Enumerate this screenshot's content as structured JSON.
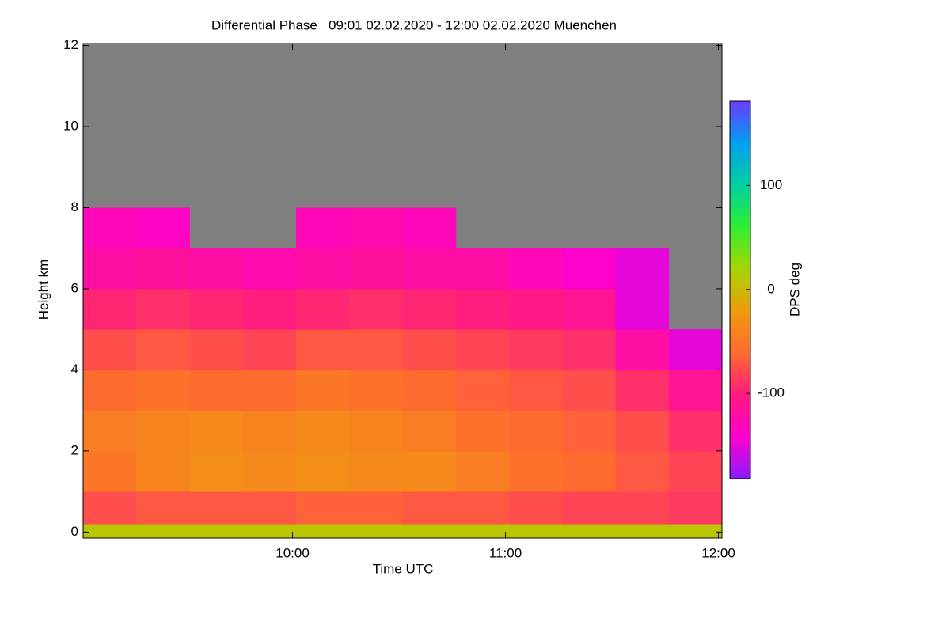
{
  "chart_data": {
    "type": "heatmap",
    "title": "Differential Phase   09:01 02.02.2020 - 12:00 02.02.2020 Muenchen",
    "x_label": "Time UTC",
    "y_label": "Height km",
    "colorbar_label": "DPS deg",
    "xlim": [
      541,
      721
    ],
    "xticks": [
      {
        "value": 600,
        "label": "10:00"
      },
      {
        "value": 660,
        "label": "11:00"
      },
      {
        "value": 720,
        "label": "12:00"
      }
    ],
    "ylim": [
      -0.15,
      12.05
    ],
    "yticks": [
      0,
      2,
      4,
      6,
      8,
      10,
      12
    ],
    "zlim": [
      -182,
      181
    ],
    "zticks": [
      -100,
      0,
      100
    ],
    "colormap": [
      "#8a1cff",
      "#ff00d0",
      "#ff1a80",
      "#ff6a30",
      "#f09a10",
      "#a8d400",
      "#30f030",
      "#00d0a0",
      "#00a0f0",
      "#6a3cff"
    ],
    "missing_color": "#808080",
    "xbins": [
      541,
      556,
      571,
      586,
      601,
      616,
      631,
      646,
      661,
      676,
      691,
      706,
      721
    ],
    "ybins": [
      -0.15,
      0.2,
      1,
      2,
      3,
      4,
      5,
      6,
      7,
      8,
      12.05
    ],
    "z": [
      [
        10,
        10,
        10,
        10,
        10,
        10,
        10,
        10,
        10,
        10,
        10,
        10
      ],
      [
        -75,
        -70,
        -70,
        -70,
        -65,
        -65,
        -70,
        -70,
        -75,
        -80,
        -80,
        -85
      ],
      [
        -50,
        -40,
        -30,
        -35,
        -30,
        -35,
        -35,
        -45,
        -55,
        -60,
        -70,
        -80
      ],
      [
        -45,
        -40,
        -35,
        -40,
        -35,
        -40,
        -45,
        -55,
        -60,
        -65,
        -75,
        -90
      ],
      [
        -60,
        -55,
        -60,
        -60,
        -50,
        -55,
        -60,
        -65,
        -70,
        -75,
        -90,
        -110
      ],
      [
        -75,
        -70,
        -75,
        -80,
        -70,
        -70,
        -75,
        -80,
        -85,
        -90,
        -120,
        -150
      ],
      [
        -95,
        -90,
        -95,
        -100,
        -95,
        -90,
        -95,
        -100,
        -105,
        -110,
        -150,
        null
      ],
      [
        -120,
        -115,
        -120,
        -125,
        -120,
        -115,
        -120,
        -120,
        -130,
        -140,
        -150,
        null
      ],
      [
        -130,
        -135,
        null,
        null,
        -130,
        -125,
        -130,
        null,
        null,
        null,
        null,
        null
      ],
      [
        null,
        null,
        null,
        null,
        null,
        null,
        null,
        null,
        null,
        null,
        null,
        null
      ]
    ]
  }
}
